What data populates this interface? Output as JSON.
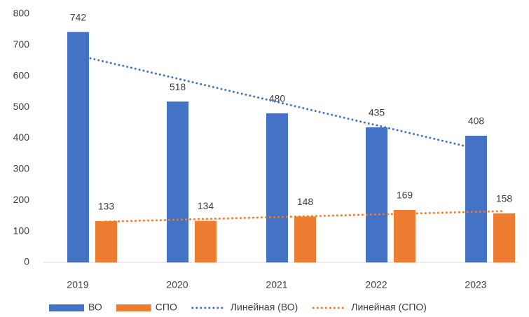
{
  "chart_data": {
    "type": "bar",
    "categories": [
      "2019",
      "2020",
      "2021",
      "2022",
      "2023"
    ],
    "series": [
      {
        "name": "ВО",
        "color": "#4472c4",
        "values": [
          742,
          518,
          480,
          435,
          408
        ],
        "trendline": {
          "name": "Линейная (ВО)",
          "color": "#4472c4",
          "kind": "linear",
          "style": "dotted"
        }
      },
      {
        "name": "СПО",
        "color": "#ed7d31",
        "values": [
          133,
          134,
          148,
          169,
          158
        ],
        "trendline": {
          "name": "Линейная (СПО)",
          "color": "#ed7d31",
          "kind": "linear",
          "style": "dotted"
        }
      }
    ],
    "ylim": [
      0,
      800
    ],
    "yticks": [
      0,
      100,
      200,
      300,
      400,
      500,
      600,
      700,
      800
    ],
    "grid": false,
    "data_labels": true,
    "legend": "bottom"
  }
}
